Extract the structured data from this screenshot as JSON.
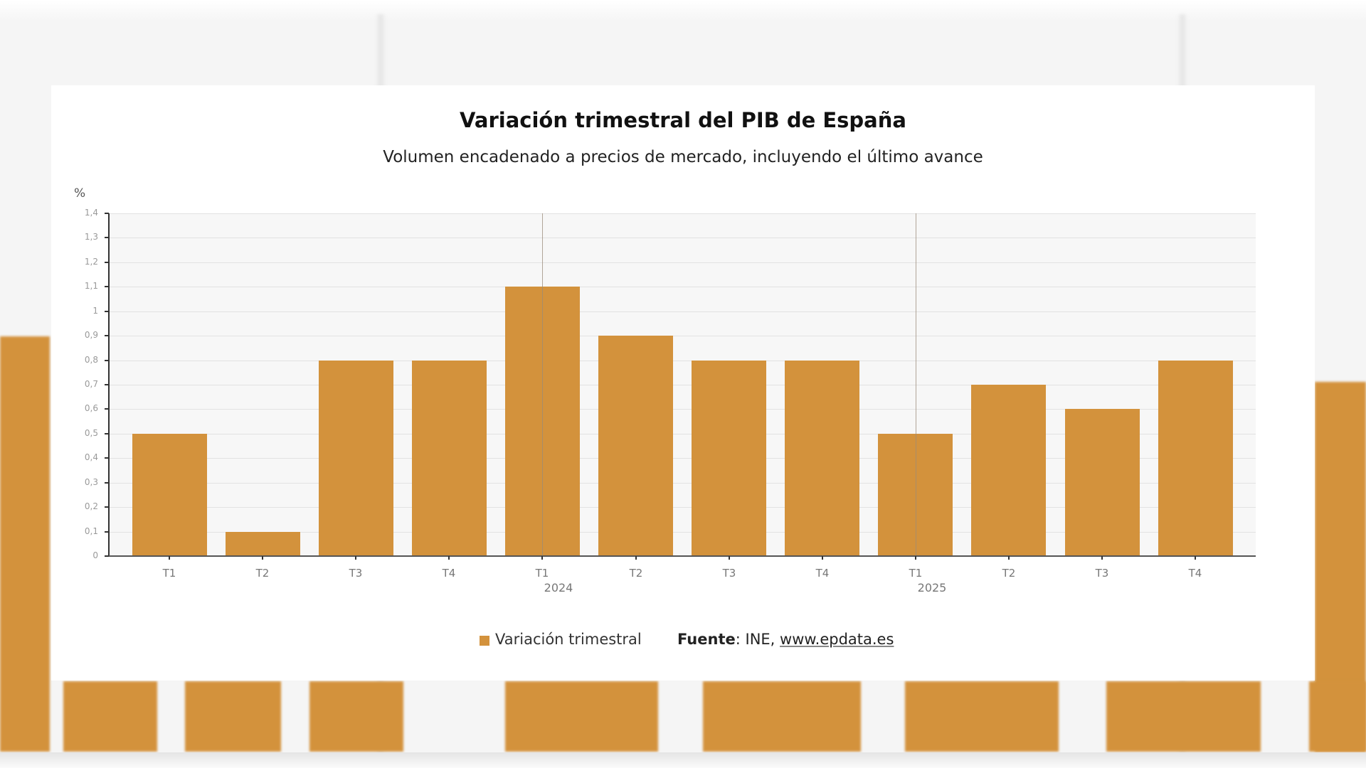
{
  "chart_data": {
    "type": "bar",
    "title": "Variación trimestral del PIB de España",
    "subtitle": "Volumen encadenado a precios de mercado, incluyendo el último avance",
    "xlabel": "",
    "ylabel": "%",
    "ylim": [
      0,
      1.4
    ],
    "yticks": [
      "0",
      "0,1",
      "0,2",
      "0,3",
      "0,4",
      "0,5",
      "0,6",
      "0,7",
      "0,8",
      "0,9",
      "1",
      "1,1",
      "1,2",
      "1,3",
      "1,4"
    ],
    "grid": true,
    "categories": [
      "T1",
      "T2",
      "T3",
      "T4",
      "T1",
      "T2",
      "T3",
      "T4",
      "T1",
      "T2",
      "T3",
      "T4"
    ],
    "year_labels": [
      {
        "label": "2024",
        "category_index": 4
      },
      {
        "label": "2025",
        "category_index": 8
      }
    ],
    "series": [
      {
        "name": "Variación trimestral",
        "color": "#d3923c",
        "values": [
          0.5,
          0.1,
          0.8,
          0.8,
          1.1,
          0.9,
          0.8,
          0.8,
          0.5,
          0.7,
          0.6,
          0.8
        ]
      }
    ],
    "legend_position": "bottom"
  },
  "legend": {
    "label": "Variación trimestral"
  },
  "source": {
    "label": "Fuente",
    "org": "INE,",
    "link": "www.epdata.es"
  },
  "colors": {
    "bar": "#d3923c",
    "plot_bg": "#f7f7f7",
    "grid": "#e2e2e2"
  }
}
